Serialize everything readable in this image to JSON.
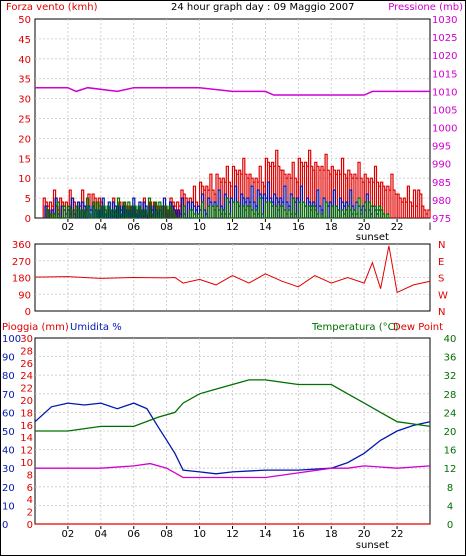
{
  "title": "24 hour graph day : 09 Maggio 2007",
  "colors": {
    "red": "#e00000",
    "blue": "#0018b0",
    "green": "#007000",
    "magenta": "#d000d0",
    "grid": "#c8c8c8",
    "frame": "#000000"
  },
  "x_ticks": [
    "02",
    "04",
    "06",
    "08",
    "10",
    "12",
    "14",
    "16",
    "18",
    "20",
    "22"
  ],
  "sunset_label": "sunset",
  "chart_data": [
    {
      "type": "bar",
      "name": "wind-panel",
      "left_axis_label": "Forza vento (kmh)",
      "right_axis_label": "Pressione (mb)",
      "left_ticks": [
        "0",
        "5",
        "10",
        "15",
        "20",
        "25",
        "30",
        "35",
        "40",
        "45",
        "50"
      ],
      "right_ticks": [
        "975",
        "980",
        "985",
        "990",
        "995",
        "1000",
        "1005",
        "1010",
        "1015",
        "1020",
        "1025",
        "1030"
      ],
      "ylim": [
        0,
        50
      ],
      "ylim_right": [
        975,
        1030
      ],
      "x_hours": [
        0,
        24
      ],
      "sunset_hour": 20.5,
      "series": [
        {
          "name": "gust",
          "color": "red",
          "segments": [
            [
              0.5,
              5
            ],
            [
              1.5,
              5
            ],
            [
              2.2,
              5
            ],
            [
              4.1,
              3
            ],
            [
              8.2,
              5
            ],
            [
              9.0,
              6
            ],
            [
              10.0,
              9
            ],
            [
              11.0,
              11
            ],
            [
              12.0,
              13
            ],
            [
              13.0,
              11
            ],
            [
              14.0,
              15
            ],
            [
              15.0,
              12
            ],
            [
              16.0,
              15
            ],
            [
              17.0,
              14
            ],
            [
              18.0,
              13
            ],
            [
              19.0,
              12
            ],
            [
              20.0,
              11
            ],
            [
              21.0,
              9
            ],
            [
              22.0,
              6
            ],
            [
              23.5,
              3
            ]
          ]
        },
        {
          "name": "avg",
          "color": "blue",
          "segments": [
            [
              0.6,
              3
            ],
            [
              1.6,
              3
            ],
            [
              8.3,
              3
            ],
            [
              9.5,
              4
            ],
            [
              10.5,
              5
            ],
            [
              11.5,
              6
            ],
            [
              12.5,
              6
            ],
            [
              13.5,
              7
            ],
            [
              14.5,
              6
            ],
            [
              15.5,
              6
            ],
            [
              16.5,
              5
            ],
            [
              17.5,
              5
            ],
            [
              18.5,
              5
            ],
            [
              19.5,
              4
            ],
            [
              20.5,
              3
            ]
          ]
        },
        {
          "name": "min",
          "color": "green",
          "segments": [
            [
              0.7,
              2
            ],
            [
              2.5,
              3
            ],
            [
              8.4,
              1
            ],
            [
              9.5,
              2
            ],
            [
              11,
              3
            ],
            [
              13,
              3
            ],
            [
              15,
              3
            ],
            [
              17,
              2
            ],
            [
              19,
              3
            ],
            [
              21,
              2
            ]
          ]
        }
      ],
      "pressure": [
        [
          0,
          1011
        ],
        [
          2,
          1011
        ],
        [
          2.5,
          1010
        ],
        [
          3.2,
          1011
        ],
        [
          5,
          1010
        ],
        [
          6,
          1011
        ],
        [
          10,
          1011
        ],
        [
          12,
          1010
        ],
        [
          14,
          1010
        ],
        [
          14.5,
          1009
        ],
        [
          20,
          1009
        ],
        [
          20.5,
          1010
        ],
        [
          24,
          1010
        ]
      ]
    },
    {
      "type": "line",
      "name": "direction-panel",
      "left_ticks": [
        "0",
        "90",
        "180",
        "270",
        "360"
      ],
      "right_ticks": [
        "N",
        "W",
        "S",
        "E",
        "N"
      ],
      "ylim": [
        0,
        360
      ],
      "direction": [
        [
          0,
          182
        ],
        [
          2,
          185
        ],
        [
          4,
          175
        ],
        [
          6,
          180
        ],
        [
          8,
          178
        ],
        [
          8.5,
          180
        ],
        [
          9,
          150
        ],
        [
          10,
          170
        ],
        [
          11,
          140
        ],
        [
          12,
          190
        ],
        [
          13,
          150
        ],
        [
          14,
          200
        ],
        [
          15,
          160
        ],
        [
          16,
          130
        ],
        [
          17,
          190
        ],
        [
          18,
          150
        ],
        [
          19,
          180
        ],
        [
          20,
          150
        ],
        [
          20.5,
          260
        ],
        [
          21,
          120
        ],
        [
          21.5,
          350
        ],
        [
          22,
          100
        ],
        [
          23,
          140
        ],
        [
          24,
          160
        ]
      ]
    },
    {
      "type": "line",
      "name": "temp-panel",
      "left_axis_label_1": "Pioggia (mm)",
      "left_axis_label_2": "Umidita %",
      "right_axis_label_1": "Temperatura (°C)",
      "right_axis_label_2": "Dew Point",
      "rain_ticks": [
        "0",
        "2",
        "4",
        "6",
        "8",
        "10",
        "12",
        "14",
        "16",
        "18",
        "20",
        "22",
        "24",
        "26",
        "28",
        "30"
      ],
      "humidity_ticks": [
        "0",
        "10",
        "20",
        "30",
        "40",
        "50",
        "60",
        "70",
        "80",
        "90",
        "100"
      ],
      "temp_ticks": [
        "0",
        "4",
        "8",
        "12",
        "16",
        "20",
        "24",
        "28",
        "32",
        "36",
        "40"
      ],
      "humidity_lim": [
        0,
        100
      ],
      "temp_lim": [
        0,
        40
      ],
      "humidity": [
        [
          0,
          55
        ],
        [
          1,
          63
        ],
        [
          2,
          65
        ],
        [
          3,
          64
        ],
        [
          4,
          65
        ],
        [
          5,
          62
        ],
        [
          6,
          65
        ],
        [
          6.8,
          62
        ],
        [
          7.5,
          52
        ],
        [
          8,
          45
        ],
        [
          8.5,
          38
        ],
        [
          9,
          29
        ],
        [
          10,
          28
        ],
        [
          11,
          27
        ],
        [
          12,
          28
        ],
        [
          14,
          29
        ],
        [
          16,
          29
        ],
        [
          18,
          30
        ],
        [
          19,
          33
        ],
        [
          20,
          38
        ],
        [
          21,
          45
        ],
        [
          22,
          50
        ],
        [
          23,
          53
        ],
        [
          24,
          55
        ]
      ],
      "temperature": [
        [
          0,
          20
        ],
        [
          2,
          20
        ],
        [
          4,
          21
        ],
        [
          6,
          21
        ],
        [
          7.5,
          23
        ],
        [
          8.5,
          24
        ],
        [
          9,
          26
        ],
        [
          10,
          28
        ],
        [
          11,
          29
        ],
        [
          12,
          30
        ],
        [
          13,
          31
        ],
        [
          14,
          31
        ],
        [
          16,
          30
        ],
        [
          18,
          30
        ],
        [
          19,
          28
        ],
        [
          20,
          26
        ],
        [
          21,
          24
        ],
        [
          22,
          22
        ],
        [
          23,
          21.5
        ],
        [
          24,
          21
        ]
      ],
      "dew_point": [
        [
          0,
          12
        ],
        [
          2,
          12
        ],
        [
          4,
          12
        ],
        [
          6,
          12.5
        ],
        [
          7,
          13
        ],
        [
          8,
          12
        ],
        [
          9,
          10
        ],
        [
          10,
          10
        ],
        [
          11,
          10
        ],
        [
          12,
          10
        ],
        [
          13,
          10
        ],
        [
          14,
          10
        ],
        [
          16,
          11
        ],
        [
          18,
          12
        ],
        [
          19,
          12
        ],
        [
          20,
          12.5
        ],
        [
          22,
          12
        ],
        [
          24,
          12.5
        ]
      ],
      "rain": [
        [
          0,
          0
        ],
        [
          24,
          0
        ]
      ]
    }
  ]
}
